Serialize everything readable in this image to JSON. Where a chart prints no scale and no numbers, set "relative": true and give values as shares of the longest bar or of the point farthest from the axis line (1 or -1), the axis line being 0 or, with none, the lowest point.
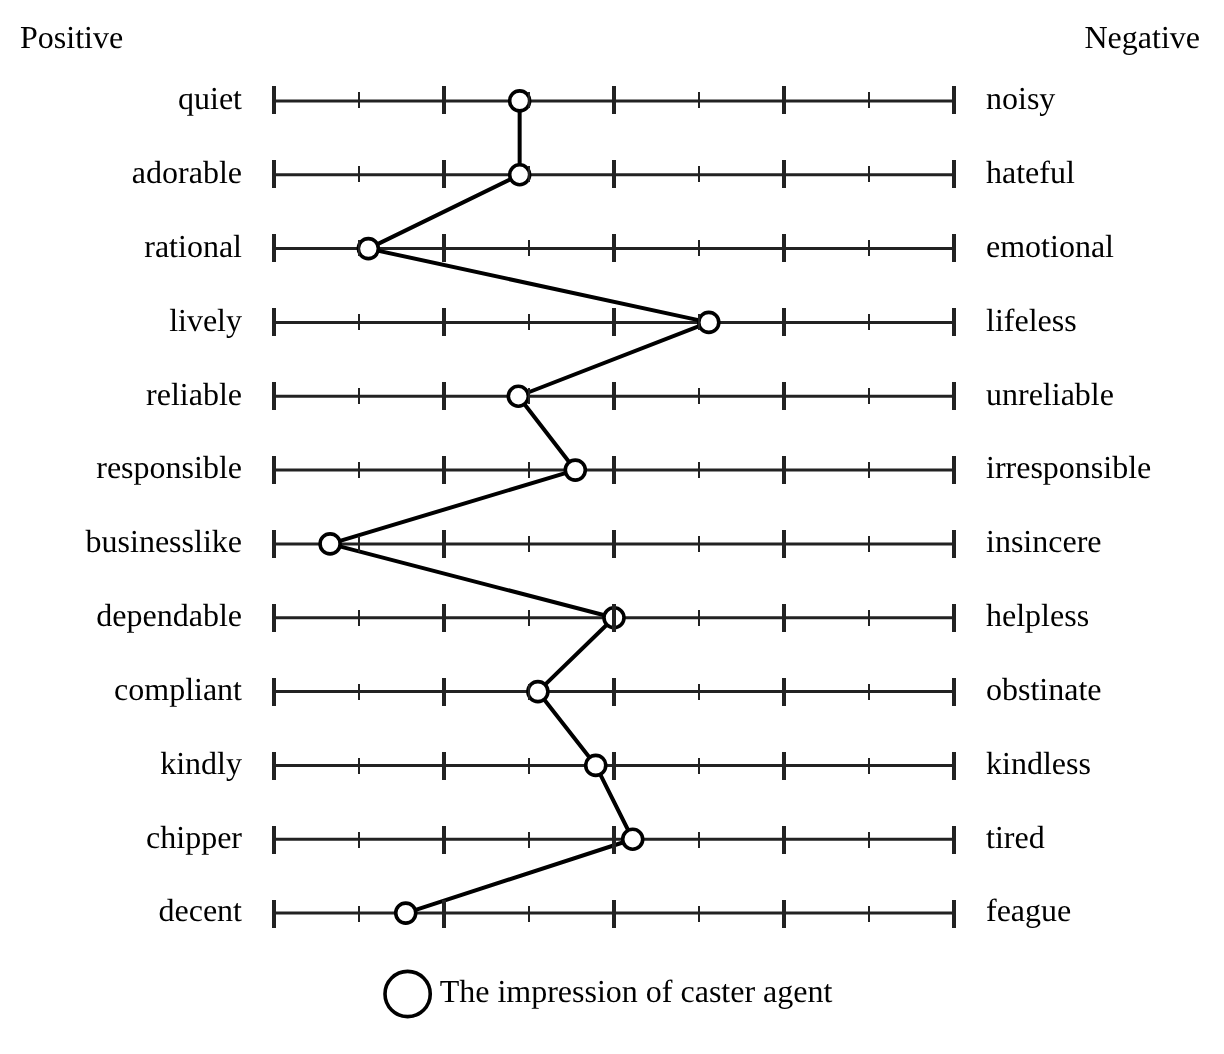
{
  "chart_data": {
    "type": "line",
    "orientation": "horizontal",
    "relative": true,
    "annotations": [
      "Positive",
      "Negative"
    ],
    "categories": [
      "quiet",
      "adorable",
      "rational",
      "lively",
      "reliable",
      "responsible",
      "businesslike",
      "dependable",
      "compliant",
      "kindly",
      "chipper",
      "decent"
    ],
    "y2_categories": [
      "noisy",
      "hateful",
      "emotional",
      "lifeless",
      "unreliable",
      "irresponsible",
      "insincere",
      "helpless",
      "obstinate",
      "kindless",
      "tired",
      "feague"
    ],
    "series": [
      {
        "name": "The impression of caster agent",
        "color": "#000000",
        "values": [
          0.565,
          0.565,
          0.217,
          1,
          0.562,
          0.693,
          0.129,
          0.782,
          0.607,
          0.74,
          0.825,
          0.303
        ]
      }
    ],
    "marker": "circle",
    "line_style": "solid",
    "grid": "y",
    "legend": "bottom"
  }
}
